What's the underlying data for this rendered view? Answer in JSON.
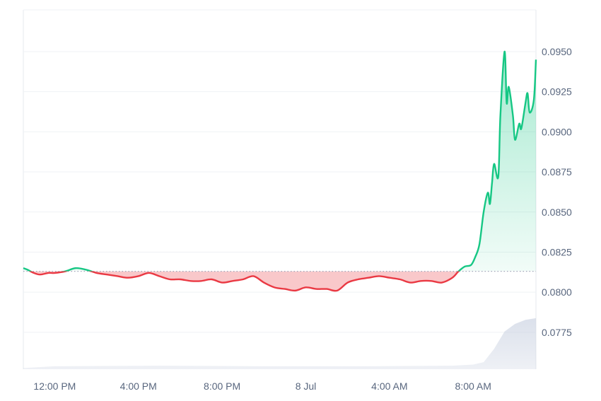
{
  "chart_data": {
    "type": "area",
    "baseline": 0.0813,
    "ylim": [
      0.0752,
      0.0976
    ],
    "yticks": [
      "0.0775",
      "0.0800",
      "0.0825",
      "0.0850",
      "0.0875",
      "0.0900",
      "0.0925",
      "0.0950"
    ],
    "xticks": [
      "12:00 PM",
      "4:00 PM",
      "8:00 PM",
      "8 Jul",
      "4:00 AM",
      "8:00 AM"
    ],
    "x_hours_range": [
      -1.5,
      23.0
    ],
    "price_series": {
      "x": [
        -1.5,
        -1.3,
        -1.0,
        -0.7,
        -0.3,
        0.0,
        0.5,
        1.0,
        1.5,
        2.0,
        2.5,
        3.0,
        3.5,
        4.0,
        4.5,
        5.0,
        5.5,
        6.0,
        6.5,
        7.0,
        7.5,
        8.0,
        8.5,
        9.0,
        9.5,
        10.0,
        10.5,
        11.0,
        11.5,
        12.0,
        12.5,
        13.0,
        13.5,
        14.0,
        14.5,
        15.0,
        15.5,
        16.0,
        16.5,
        17.0,
        17.5,
        18.0,
        18.5,
        19.0,
        19.3,
        19.6,
        19.9,
        20.1,
        20.3,
        20.5,
        20.7,
        20.8,
        20.9,
        21.0,
        21.2,
        21.3,
        21.5,
        21.6,
        21.7,
        21.9,
        22.0,
        22.2,
        22.3,
        22.5,
        22.6,
        22.7,
        22.9,
        23.0
      ],
      "y": [
        0.0815,
        0.0814,
        0.0812,
        0.0811,
        0.0812,
        0.0812,
        0.0813,
        0.0815,
        0.0814,
        0.0812,
        0.0811,
        0.081,
        0.0809,
        0.081,
        0.0812,
        0.081,
        0.0808,
        0.0808,
        0.0807,
        0.0807,
        0.0808,
        0.0806,
        0.0807,
        0.0808,
        0.081,
        0.0806,
        0.0803,
        0.0802,
        0.0801,
        0.0803,
        0.0802,
        0.0802,
        0.0801,
        0.0806,
        0.0808,
        0.0809,
        0.081,
        0.0809,
        0.0808,
        0.0806,
        0.0807,
        0.0807,
        0.0806,
        0.0809,
        0.0813,
        0.0816,
        0.0817,
        0.0822,
        0.083,
        0.085,
        0.0862,
        0.0855,
        0.0868,
        0.088,
        0.0872,
        0.091,
        0.095,
        0.0918,
        0.0928,
        0.091,
        0.0895,
        0.0905,
        0.0902,
        0.0918,
        0.0924,
        0.0912,
        0.092,
        0.0945
      ]
    },
    "volume_series": {
      "x": [
        -1.5,
        0.0,
        5.0,
        10.0,
        15.0,
        19.0,
        20.0,
        20.5,
        21.0,
        21.5,
        22.0,
        22.5,
        23.0
      ],
      "y": [
        0.02,
        0.05,
        0.06,
        0.05,
        0.05,
        0.06,
        0.08,
        0.12,
        0.35,
        0.65,
        0.78,
        0.85,
        0.88
      ]
    },
    "colors": {
      "up_line": "#16c784",
      "down_line": "#ea3943",
      "up_fill": "#16c784",
      "down_fill": "#ea3943",
      "baseline": "#a1a7bb",
      "grid": "#eff2f5",
      "volume": "#cfd6e4"
    }
  }
}
